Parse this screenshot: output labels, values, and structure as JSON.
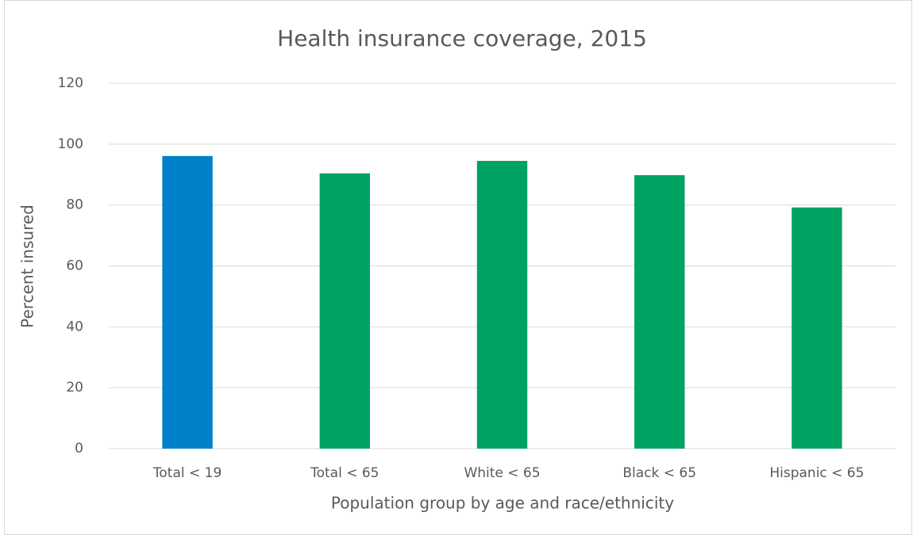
{
  "chart_data": {
    "type": "bar",
    "title": "Health insurance coverage, 2015",
    "x_label": "Population group by age and race/ethnicity",
    "y_label": "Percent insured",
    "categories": [
      "Total < 19",
      "Total < 65",
      "White < 65",
      "Black < 65",
      "Hispanic < 65"
    ],
    "values": [
      96.1,
      90.4,
      94.5,
      89.8,
      79.2
    ],
    "colors": [
      "#0080c8",
      "#00a262",
      "#00a262",
      "#00a262",
      "#00a262"
    ],
    "ylim": [
      0,
      120
    ],
    "yticks": [
      0,
      20,
      40,
      60,
      80,
      100,
      120
    ],
    "grid": true
  }
}
